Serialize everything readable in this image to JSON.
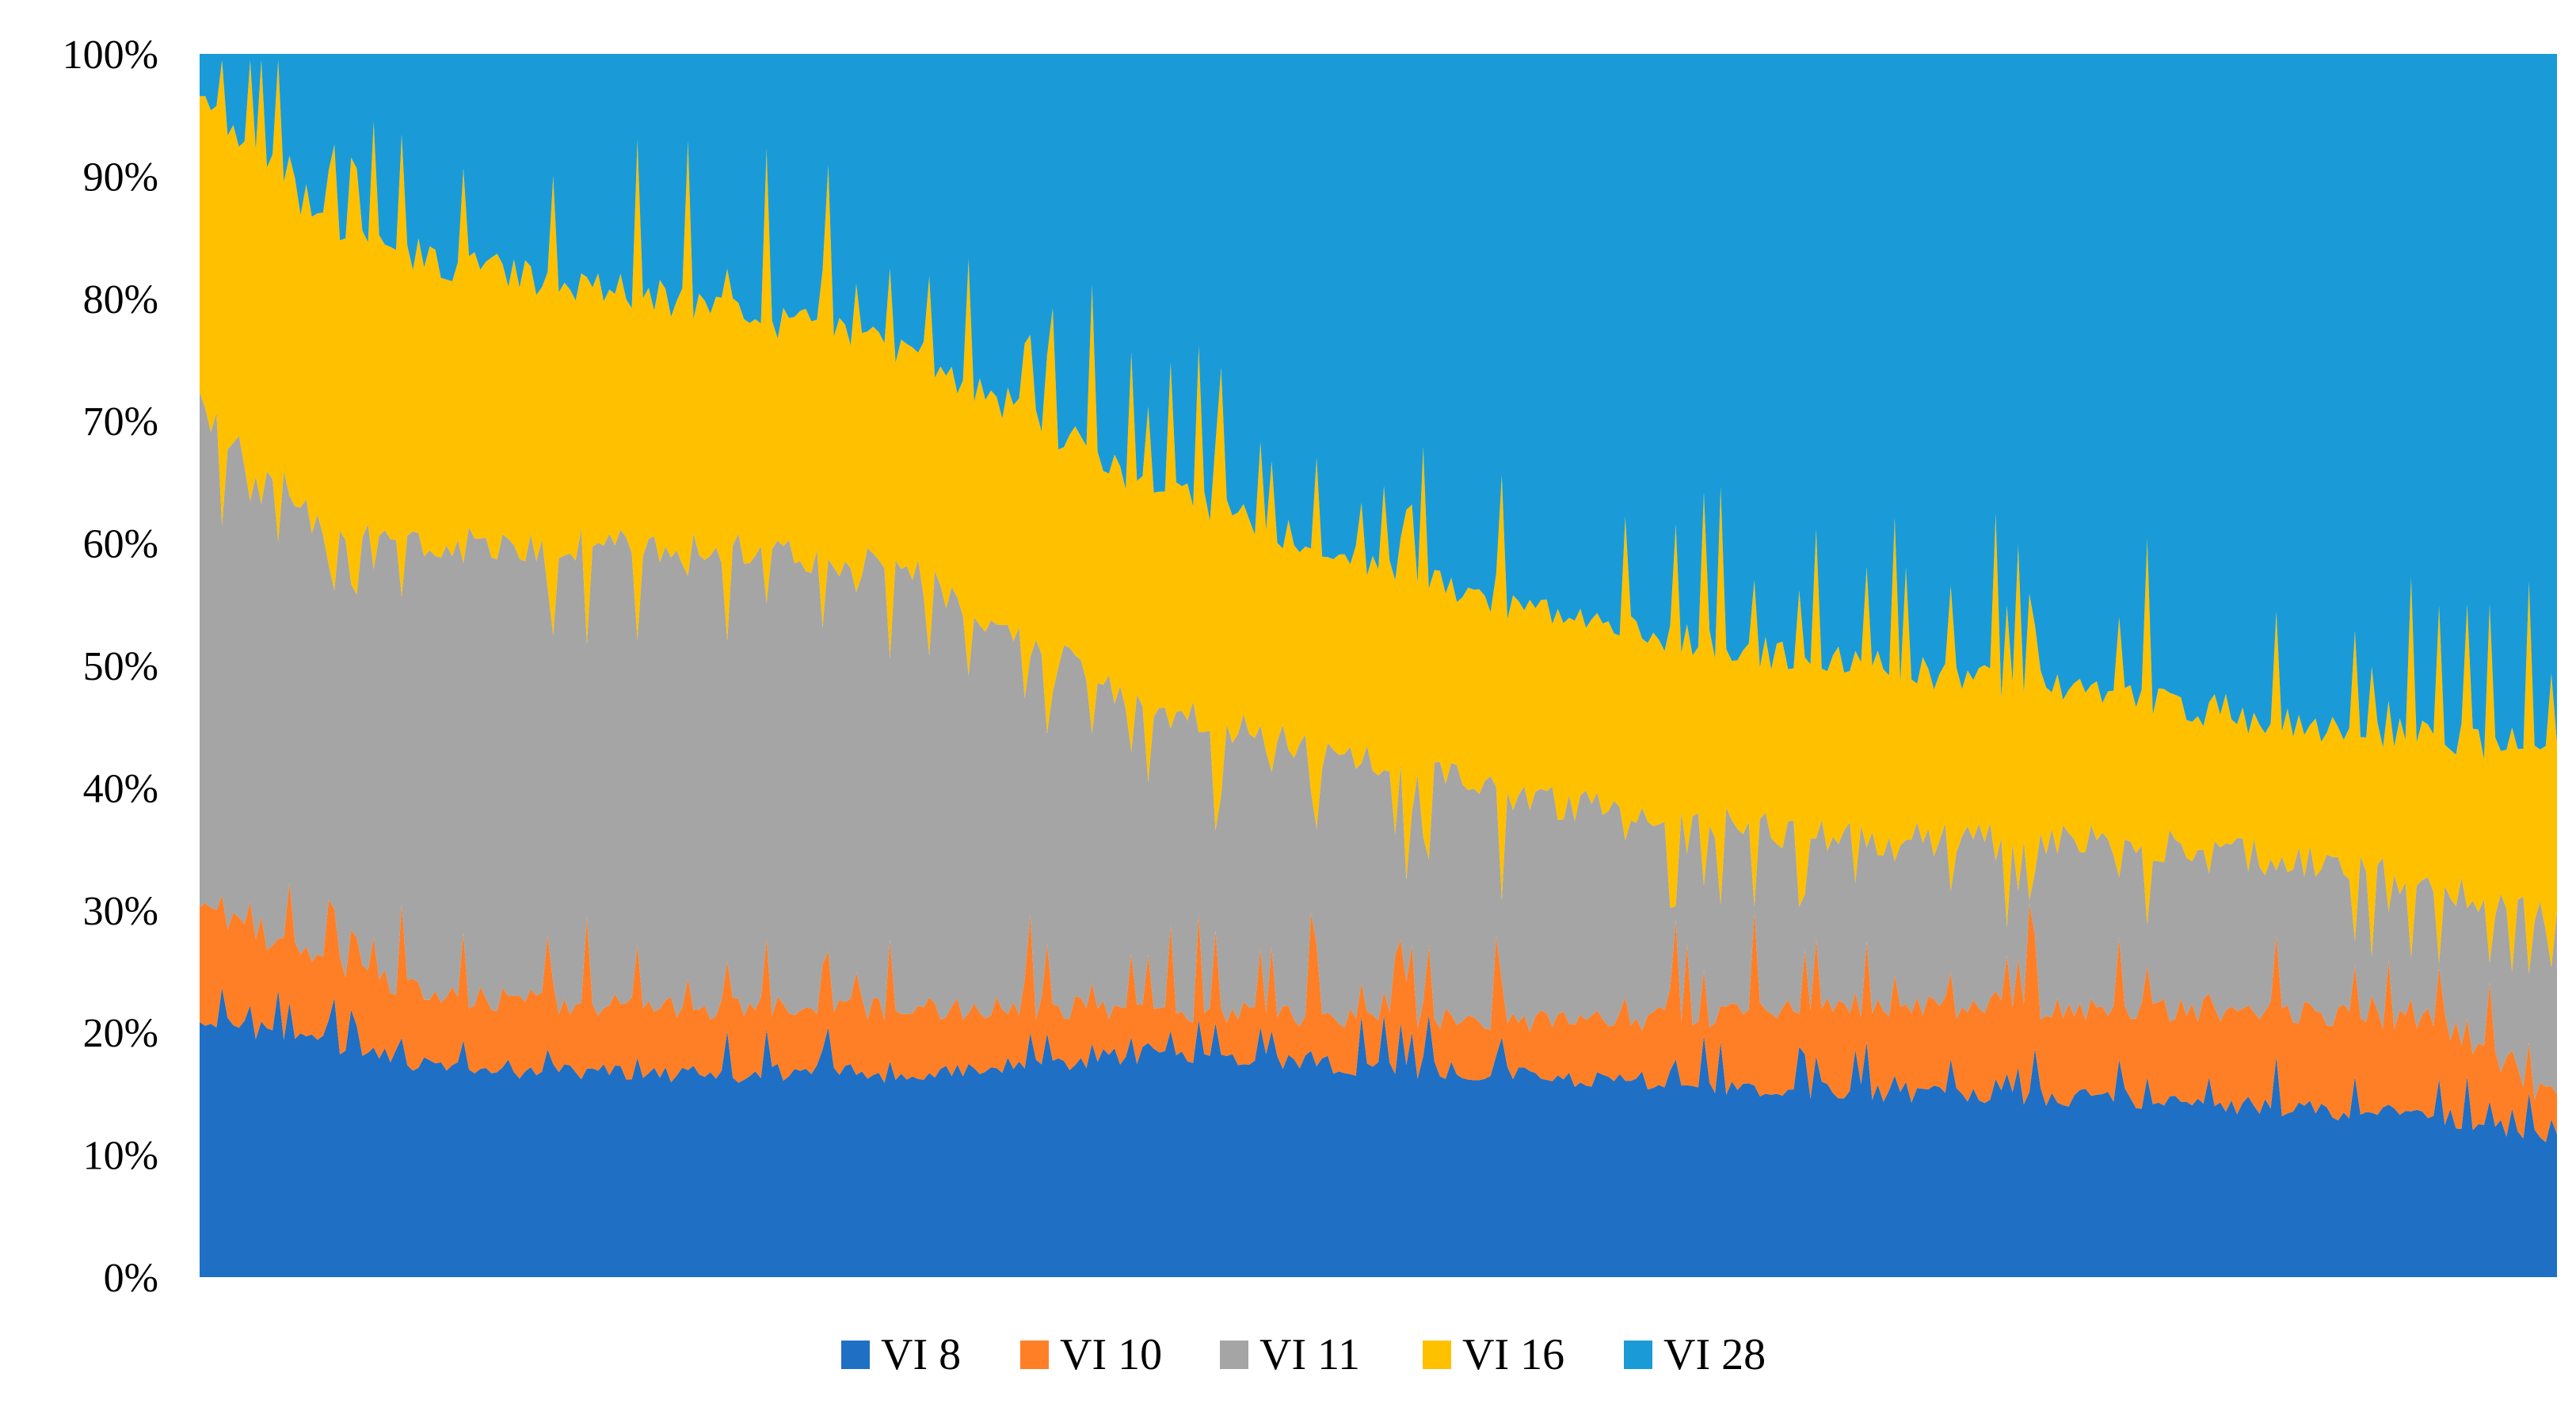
{
  "chart_data": {
    "type": "area",
    "stacking": "percent",
    "title": "",
    "xlabel": "",
    "ylabel": "",
    "ylim": [
      0,
      100
    ],
    "y_ticks": [
      "0%",
      "10%",
      "20%",
      "30%",
      "40%",
      "50%",
      "60%",
      "70%",
      "80%",
      "90%",
      "100%"
    ],
    "x_ticks": [],
    "grid": false,
    "legend_position": "bottom",
    "samples": 420,
    "cumulative_boundaries_anchor_x": [
      0,
      5,
      10,
      20,
      30,
      40,
      50,
      60,
      70,
      80,
      90,
      95,
      100
    ],
    "boundaries": [
      {
        "top_of": "VI 8",
        "anchors_y": [
          21,
          19,
          17,
          16.5,
          16.5,
          18,
          17,
          16,
          15,
          14.5,
          13.5,
          13,
          11
        ]
      },
      {
        "top_of": "VI 10",
        "anchors_y": [
          30,
          26,
          23,
          22,
          22,
          22,
          21,
          21,
          22,
          22,
          21.5,
          21,
          14
        ]
      },
      {
        "top_of": "VI 11",
        "anchors_y": [
          71,
          62,
          60,
          60,
          58,
          47,
          42,
          38,
          36,
          36,
          34,
          32,
          29
        ]
      },
      {
        "top_of": "VI 16",
        "anchors_y": [
          96,
          87,
          83,
          80,
          76,
          65,
          58,
          53,
          50,
          48,
          45,
          44,
          43
        ]
      }
    ],
    "series": [
      {
        "name": "VI 8",
        "color": "#1F6FC5"
      },
      {
        "name": "VI 10",
        "color": "#FF7F27"
      },
      {
        "name": "VI 11",
        "color": "#A5A5A5"
      },
      {
        "name": "VI 16",
        "color": "#FFC000"
      },
      {
        "name": "VI 28",
        "color": "#1A9BD7"
      }
    ]
  }
}
